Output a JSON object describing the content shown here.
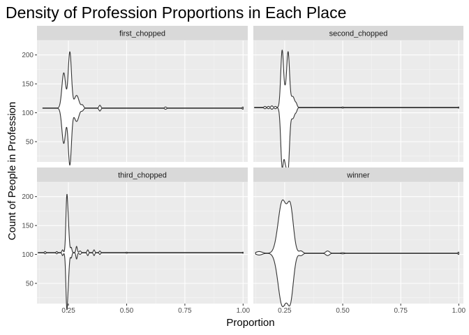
{
  "chart_data": {
    "type": "violin",
    "title": "Density of Profession Proportions in Each Place",
    "xlabel": "Proportion",
    "ylabel": "Count of People in Profession",
    "x_ticks": [
      "0.25",
      "0.50",
      "0.75",
      "1.00"
    ],
    "x_tick_values": [
      0.25,
      0.5,
      0.75,
      1.0
    ],
    "y_ticks": [
      "50",
      "100",
      "150",
      "200"
    ],
    "y_tick_values": [
      50,
      100,
      150,
      200
    ],
    "xlim": [
      0.115,
      1.02
    ],
    "ylim": [
      15,
      225
    ],
    "grid": true,
    "panels": [
      {
        "label": "first_chopped",
        "y_center": 108,
        "x_range": [
          0.14,
          1.0
        ],
        "peaks": [
          {
            "x": 0.23,
            "top": 169,
            "bottom": 47,
            "hw": 0.008
          },
          {
            "x": 0.256,
            "top": 205,
            "bottom": 10,
            "hw": 0.007
          },
          {
            "x": 0.285,
            "top": 130,
            "bottom": 85,
            "hw": 0.01
          },
          {
            "x": 0.31,
            "top": 113,
            "bottom": 104,
            "hw": 0.005
          },
          {
            "x": 0.385,
            "top": 113,
            "bottom": 103,
            "hw": 0.004
          },
          {
            "x": 0.667,
            "top": 110,
            "bottom": 106,
            "hw": 0.004
          },
          {
            "x": 1.0,
            "top": 110,
            "bottom": 106,
            "hw": 0.004
          }
        ]
      },
      {
        "label": "second_chopped",
        "y_center": 109,
        "x_range": [
          0.12,
          1.0
        ],
        "peaks": [
          {
            "x": 0.165,
            "top": 111,
            "bottom": 107,
            "hw": 0.004
          },
          {
            "x": 0.18,
            "top": 111,
            "bottom": 107,
            "hw": 0.004
          },
          {
            "x": 0.195,
            "top": 112,
            "bottom": 106,
            "hw": 0.004
          },
          {
            "x": 0.21,
            "top": 111,
            "bottom": 107,
            "hw": 0.004
          },
          {
            "x": 0.239,
            "top": 207,
            "bottom": 10,
            "hw": 0.006
          },
          {
            "x": 0.253,
            "top": 130,
            "bottom": 30,
            "hw": 0.006
          },
          {
            "x": 0.265,
            "top": 202,
            "bottom": 10,
            "hw": 0.006
          },
          {
            "x": 0.285,
            "top": 128,
            "bottom": 90,
            "hw": 0.008
          },
          {
            "x": 0.3,
            "top": 114,
            "bottom": 104,
            "hw": 0.004
          },
          {
            "x": 0.5,
            "top": 110,
            "bottom": 108,
            "hw": 0.004
          },
          {
            "x": 1.0,
            "top": 110,
            "bottom": 108,
            "hw": 0.004
          }
        ]
      },
      {
        "label": "third_chopped",
        "y_center": 103,
        "x_range": [
          0.12,
          1.0
        ],
        "peaks": [
          {
            "x": 0.15,
            "top": 105,
            "bottom": 101,
            "hw": 0.003
          },
          {
            "x": 0.2,
            "top": 105,
            "bottom": 101,
            "hw": 0.003
          },
          {
            "x": 0.225,
            "top": 108,
            "bottom": 98,
            "hw": 0.003
          },
          {
            "x": 0.243,
            "top": 195,
            "bottom": 12,
            "hw": 0.004
          },
          {
            "x": 0.25,
            "top": 140,
            "bottom": 70,
            "hw": 0.004
          },
          {
            "x": 0.262,
            "top": 112,
            "bottom": 94,
            "hw": 0.003
          },
          {
            "x": 0.285,
            "top": 114,
            "bottom": 92,
            "hw": 0.003
          },
          {
            "x": 0.3,
            "top": 106,
            "bottom": 100,
            "hw": 0.004
          },
          {
            "x": 0.333,
            "top": 108,
            "bottom": 98,
            "hw": 0.003
          },
          {
            "x": 0.36,
            "top": 108,
            "bottom": 98,
            "hw": 0.003
          },
          {
            "x": 0.385,
            "top": 106,
            "bottom": 100,
            "hw": 0.003
          },
          {
            "x": 0.5,
            "top": 104,
            "bottom": 102,
            "hw": 0.003
          },
          {
            "x": 1.0,
            "top": 104,
            "bottom": 102,
            "hw": 0.003
          }
        ]
      },
      {
        "label": "winner",
        "y_center": 102,
        "x_range": [
          0.125,
          1.0
        ],
        "peaks": [
          {
            "x": 0.14,
            "top": 105,
            "bottom": 99,
            "hw": 0.013
          },
          {
            "x": 0.24,
            "top": 192,
            "bottom": 12,
            "hw": 0.018
          },
          {
            "x": 0.275,
            "top": 175,
            "bottom": 28,
            "hw": 0.013
          },
          {
            "x": 0.32,
            "top": 106,
            "bottom": 98,
            "hw": 0.008
          },
          {
            "x": 0.435,
            "top": 106,
            "bottom": 98,
            "hw": 0.008
          },
          {
            "x": 0.5,
            "top": 103,
            "bottom": 101,
            "hw": 0.008
          },
          {
            "x": 1.0,
            "top": 104,
            "bottom": 100,
            "hw": 0.004
          }
        ]
      }
    ]
  }
}
